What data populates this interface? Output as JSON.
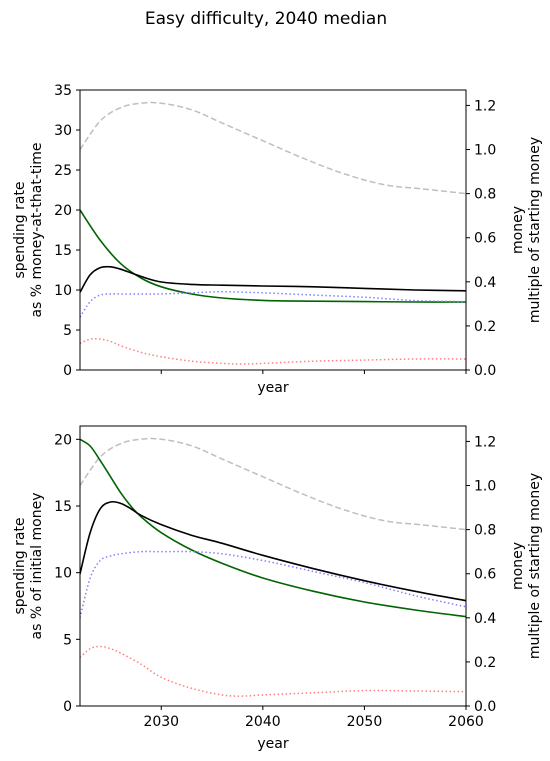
{
  "chart_data": [
    {
      "type": "line",
      "title": "Easy difficulty, 2040 median",
      "xlabel": "year",
      "ylabel": [
        "spending rate",
        "as % money-at-that-time"
      ],
      "y2label": [
        "money",
        "multiple of starting money"
      ],
      "xlim": [
        2022,
        2060
      ],
      "xticks": [],
      "ylim": [
        0,
        35
      ],
      "yticks": [
        0,
        5,
        10,
        15,
        20,
        25,
        30,
        35
      ],
      "y2lim": [
        0,
        1.27
      ],
      "y2ticks": [
        "0.0",
        "0.2",
        "0.4",
        "0.6",
        "0.8",
        "1.0",
        "1.2"
      ],
      "series": [
        {
          "axis": "right",
          "color": "#bfbfbf",
          "style": "dashed",
          "x": [
            2022,
            2024,
            2026,
            2028,
            2030,
            2033,
            2036,
            2040,
            2044,
            2048,
            2052,
            2056,
            2060
          ],
          "y": [
            1.0,
            1.13,
            1.19,
            1.21,
            1.21,
            1.18,
            1.12,
            1.04,
            0.96,
            0.89,
            0.84,
            0.82,
            0.8
          ]
        },
        {
          "axis": "left",
          "color": "#006400",
          "style": "solid",
          "x": [
            2022,
            2024,
            2026,
            2028,
            2030,
            2033,
            2036,
            2040,
            2045,
            2050,
            2055,
            2060
          ],
          "y": [
            20.0,
            16.2,
            13.3,
            11.5,
            10.4,
            9.5,
            9.0,
            8.7,
            8.6,
            8.55,
            8.5,
            8.5
          ]
        },
        {
          "axis": "left",
          "color": "#000000",
          "style": "solid",
          "x": [
            2022,
            2023,
            2024,
            2025,
            2026,
            2028,
            2030,
            2033,
            2036,
            2040,
            2045,
            2050,
            2055,
            2060
          ],
          "y": [
            9.7,
            11.9,
            12.8,
            12.9,
            12.6,
            11.7,
            11.0,
            10.7,
            10.6,
            10.5,
            10.4,
            10.2,
            10.0,
            9.9
          ]
        },
        {
          "axis": "right",
          "color": "#7f7fff",
          "style": "dotted",
          "x": [
            2022,
            2023,
            2024,
            2025,
            2026,
            2028,
            2030,
            2033,
            2036,
            2040,
            2045,
            2050,
            2055,
            2060
          ],
          "y": [
            0.24,
            0.31,
            0.34,
            0.345,
            0.345,
            0.345,
            0.345,
            0.35,
            0.355,
            0.35,
            0.34,
            0.33,
            0.315,
            0.31
          ]
        },
        {
          "axis": "right",
          "color": "#ff7f7f",
          "style": "dotted",
          "x": [
            2022,
            2023,
            2024,
            2025,
            2026,
            2028,
            2030,
            2033,
            2036,
            2038,
            2040,
            2045,
            2050,
            2055,
            2060
          ],
          "y": [
            0.12,
            0.14,
            0.14,
            0.13,
            0.11,
            0.08,
            0.06,
            0.04,
            0.03,
            0.027,
            0.03,
            0.04,
            0.045,
            0.05,
            0.05
          ]
        }
      ]
    },
    {
      "type": "line",
      "xlabel": "year",
      "ylabel": [
        "spending rate",
        "as % of initial money"
      ],
      "y2label": [
        "money",
        "multiple of starting money"
      ],
      "xlim": [
        2022,
        2060
      ],
      "xticks": [
        2030,
        2040,
        2050,
        2060
      ],
      "ylim": [
        0,
        21
      ],
      "yticks": [
        0,
        5,
        10,
        15,
        20
      ],
      "y2lim": [
        0,
        1.27
      ],
      "y2ticks": [
        "0.0",
        "0.2",
        "0.4",
        "0.6",
        "0.8",
        "1.0",
        "1.2"
      ],
      "series": [
        {
          "axis": "right",
          "color": "#bfbfbf",
          "style": "dashed",
          "x": [
            2022,
            2024,
            2026,
            2028,
            2030,
            2033,
            2036,
            2040,
            2044,
            2048,
            2052,
            2056,
            2060
          ],
          "y": [
            1.0,
            1.13,
            1.19,
            1.21,
            1.21,
            1.18,
            1.12,
            1.04,
            0.96,
            0.89,
            0.84,
            0.82,
            0.8
          ]
        },
        {
          "axis": "left",
          "color": "#006400",
          "style": "solid",
          "x": [
            2022,
            2023,
            2024,
            2025,
            2026,
            2027,
            2028,
            2030,
            2033,
            2036,
            2040,
            2045,
            2050,
            2055,
            2060
          ],
          "y": [
            20.0,
            19.5,
            18.4,
            17.2,
            16.0,
            15.0,
            14.2,
            13.0,
            11.7,
            10.7,
            9.6,
            8.6,
            7.8,
            7.2,
            6.7
          ]
        },
        {
          "axis": "left",
          "color": "#000000",
          "style": "solid",
          "x": [
            2022,
            2023,
            2024,
            2025,
            2026,
            2027,
            2028,
            2030,
            2033,
            2036,
            2040,
            2045,
            2050,
            2055,
            2060
          ],
          "y": [
            9.9,
            13.0,
            14.8,
            15.3,
            15.2,
            14.8,
            14.3,
            13.6,
            12.8,
            12.2,
            11.3,
            10.3,
            9.4,
            8.6,
            7.9
          ]
        },
        {
          "axis": "right",
          "color": "#7f7fff",
          "style": "dotted",
          "x": [
            2022,
            2023,
            2024,
            2025,
            2026,
            2028,
            2030,
            2033,
            2036,
            2040,
            2045,
            2050,
            2055,
            2060
          ],
          "y": [
            0.4,
            0.58,
            0.66,
            0.68,
            0.69,
            0.7,
            0.7,
            0.7,
            0.69,
            0.66,
            0.61,
            0.56,
            0.5,
            0.45
          ]
        },
        {
          "axis": "right",
          "color": "#ff7f7f",
          "style": "dotted",
          "x": [
            2022,
            2023,
            2024,
            2025,
            2026,
            2028,
            2030,
            2033,
            2036,
            2038,
            2040,
            2045,
            2050,
            2055,
            2060
          ],
          "y": [
            0.22,
            0.26,
            0.27,
            0.26,
            0.24,
            0.19,
            0.13,
            0.08,
            0.05,
            0.045,
            0.05,
            0.06,
            0.07,
            0.068,
            0.065
          ]
        }
      ]
    }
  ]
}
